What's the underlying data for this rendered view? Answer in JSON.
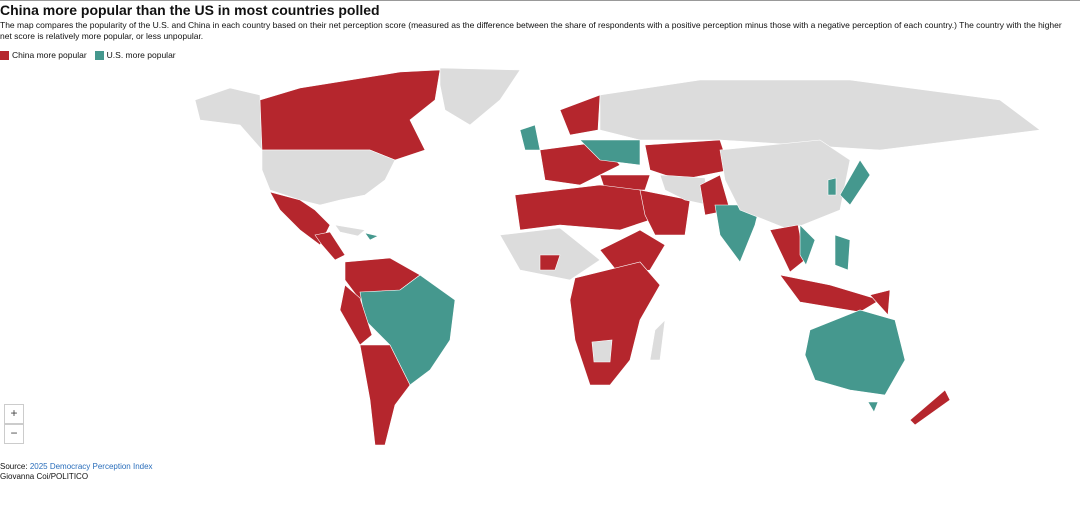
{
  "header": {
    "title": "China more popular than the US in most countries polled",
    "description": "The map compares the popularity of the U.S. and China in each country based on their net perception score (measured as the difference between the share of respondents with a positive perception minus those with a negative perception of each country.) The country with the higher net score is relatively more popular, or less unpopular."
  },
  "legend": [
    {
      "label": "China more popular",
      "color": "#b5262d"
    },
    {
      "label": "U.S. more popular",
      "color": "#45988e"
    }
  ],
  "no_data_color": "#dcdcdc",
  "zoom": {
    "in": "+",
    "out": "−"
  },
  "footer": {
    "source_label": "Source:",
    "source_link": "2025 Democracy Perception Index",
    "credit": "Giovanna Coi/POLITICO"
  }
}
